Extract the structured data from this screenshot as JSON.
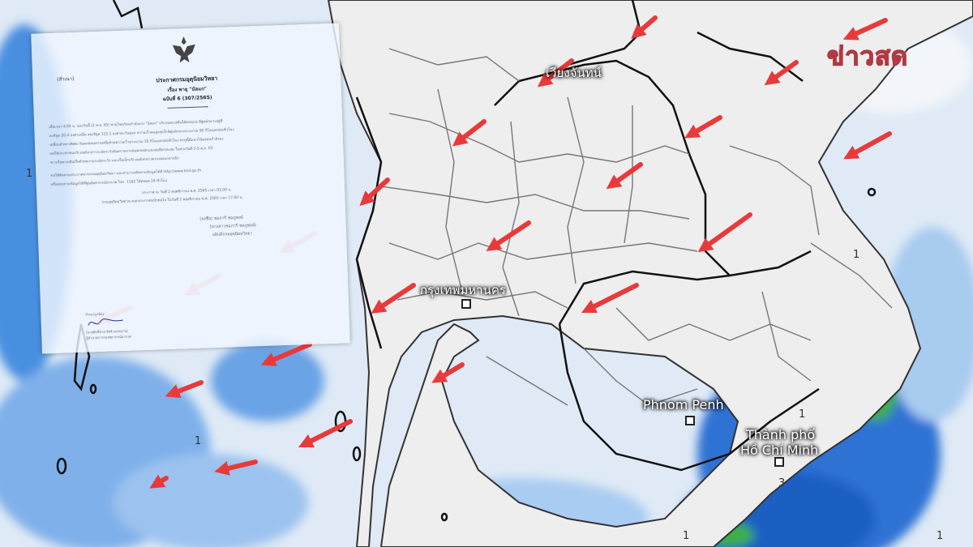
{
  "logo": {
    "text": "ข่าวสด",
    "color": "#ef6a72"
  },
  "map": {
    "land_color": "#eeeeee",
    "rain_color": "#4a8fe0",
    "heavy_rain_color": "#3cb043",
    "arrow_color": "#e83a3a",
    "labels": {
      "bangkok": "กรุงเทพมหานคร",
      "vientiane": "เวียงจันทน์",
      "phnom_penh": "Phnom Penh",
      "hcmc_line1": "Thành phố",
      "hcmc_line2": "Hồ Chí Minh"
    },
    "contour_values": [
      "1",
      "1",
      "1",
      "1",
      "1",
      "3",
      "1"
    ]
  },
  "document": {
    "corner_note": "(สำเนา)",
    "title": "ประกาศกรมอุตุนิยมวิทยา",
    "subject": "เรื่อง พายุ \"นัลแก\"",
    "issue": "ฉบับที่ 6 (307/2565)",
    "body": [
      "เมื่อเวลา 4.00 น. ของวันนี้ (2 พ.ย. 65) พายุโซนร้อนกำลังแรง \"นัลแก\" บริเวณทะเลจีนใต้ตอนบน มีศูนย์กลางอยู่ที่",
      "ละติจูด 20.4 องศาเหนือ ลองจิจูด 115.1 องศาตะวันออก ความเร็วลมสูงสุดใกล้ศูนย์กลางประมาณ 90 กิโลเมตรต่อชั่วโมง",
      "เคลื่อนตัวทางทิศตะวันตกค่อนทางเหนือด้วยความเร็วประมาณ 10 กิโลเมตรต่อชั่วโมง พายุนี้มีแนวโน้มอ่อนกำลังลง",
      "ขอให้ประชาชนบริเวณดังกล่าวระมัดระวังอันตรายจากฝนตกหนักและฝนที่ตกสะสม ในช่วงวันที่ 2-5 พ.ย. 65",
      "ชาวเรือควรเดินเรือด้วยความระมัดระวัง และเรือเล็กบริเวณดังกล่าวควรงดออกจากฝั่ง",
      "ขอให้ติดตามประกาศจากกรมอุตุนิยมวิทยา และสามารถติดตามข้อมูลได้ที่ http://www.tmd.go.th",
      "หรือสอบถามข้อมูลได้ที่ศูนย์พยากรณ์อากาศ โทร. 1182 ได้ตลอด 24 ชั่วโมง"
    ],
    "issued": "ประกาศ ณ วันที่ 2 พฤศจิกายน พ.ศ. 2565 เวลา 05.00 น.",
    "next": "กรมอุตุนิยมวิทยาจะออกประกาศฉบับต่อไป ในวันที่ 2 พฤศจิกายน พ.ศ. 2565 เวลา 17.00 น.",
    "signed": "(ลงชื่อ) ชมภารี ชมภูพงษ์",
    "signer_name": "(นางสาวชมภารี ชมภูพงษ์)",
    "signer_title": "อธิบดีกรมอุตุนิยมวิทยา",
    "copy_note_1": "สำเนาถูกต้อง",
    "copy_note_2": "(นายศักดิ์ชาย สิทธิ เอกสมาน)",
    "copy_note_3": "ผู้อำนวยการกองพยากรณ์อากาศ"
  }
}
